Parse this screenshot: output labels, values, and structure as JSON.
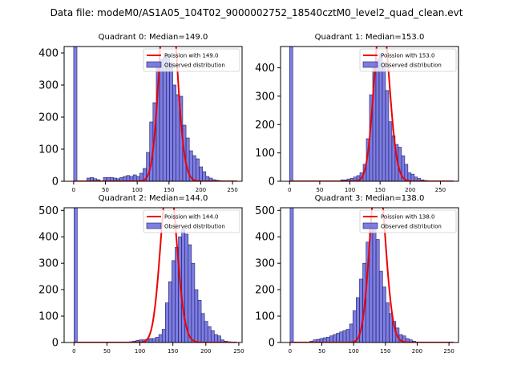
{
  "chart_data": {
    "suptitle": "Data file: modeM0/AS1A05_104T02_9000002752_18540cztM0_level2_quad_clean.evt",
    "colors": {
      "bar_fill": "#6666dd",
      "bar_edge": "#1f1f66",
      "line": "#ee0000"
    },
    "panels": [
      {
        "type": "bar",
        "title": "Quadrant 0: Median=149.0",
        "median": 149.0,
        "xlim": [
          -15,
          265
        ],
        "ylim": [
          0,
          420
        ],
        "xticks": [
          0,
          50,
          100,
          150,
          200,
          250
        ],
        "yticks": [
          0,
          100,
          200,
          300,
          400
        ],
        "bin_start": 0,
        "bin_width": 5.2,
        "counts": [
          5000,
          0,
          0,
          0,
          10,
          12,
          8,
          5,
          0,
          12,
          12,
          12,
          10,
          8,
          12,
          15,
          18,
          15,
          20,
          15,
          25,
          40,
          90,
          185,
          245,
          365,
          380,
          385,
          395,
          370,
          300,
          270,
          265,
          175,
          135,
          95,
          80,
          70,
          45,
          30,
          15,
          10,
          5,
          3,
          2,
          0,
          0,
          0,
          0,
          0
        ],
        "legend": {
          "line_label": "Poission with 149.0",
          "bars_label": "Observed distribution"
        }
      },
      {
        "type": "bar",
        "title": "Quadrant 1: Median=153.0",
        "median": 153.0,
        "xlim": [
          -15,
          280
        ],
        "ylim": [
          0,
          475
        ],
        "xticks": [
          0,
          50,
          100,
          150,
          200,
          250
        ],
        "yticks": [
          0,
          100,
          200,
          300,
          400
        ],
        "bin_start": 0,
        "bin_width": 5.3,
        "counts": [
          5000,
          0,
          0,
          0,
          0,
          0,
          0,
          0,
          0,
          0,
          0,
          0,
          0,
          0,
          0,
          0,
          5,
          5,
          8,
          10,
          15,
          20,
          30,
          60,
          150,
          305,
          400,
          430,
          450,
          405,
          320,
          210,
          160,
          130,
          120,
          90,
          60,
          30,
          25,
          15,
          10,
          5,
          3,
          2,
          0,
          0,
          0,
          0,
          0,
          0
        ],
        "legend": {
          "line_label": "Poission with 153.0",
          "bars_label": "Observed distribution"
        }
      },
      {
        "type": "bar",
        "title": "Quadrant 2: Median=144.0",
        "median": 144.0,
        "xlim": [
          -15,
          255
        ],
        "ylim": [
          0,
          510
        ],
        "xticks": [
          0,
          50,
          100,
          150,
          200,
          250
        ],
        "yticks": [
          0,
          100,
          200,
          300,
          400,
          500
        ],
        "bin_start": 0,
        "bin_width": 4.95,
        "counts": [
          5000,
          0,
          0,
          0,
          0,
          0,
          0,
          0,
          0,
          0,
          0,
          0,
          0,
          0,
          0,
          0,
          2,
          3,
          5,
          8,
          10,
          10,
          12,
          15,
          15,
          20,
          30,
          50,
          150,
          230,
          310,
          360,
          400,
          430,
          410,
          370,
          300,
          200,
          160,
          110,
          80,
          60,
          45,
          30,
          25,
          10,
          5,
          3,
          0,
          0
        ],
        "legend": {
          "line_label": "Poission with 144.0",
          "bars_label": "Observed distribution"
        }
      },
      {
        "type": "bar",
        "title": "Quadrant 3: Median=138.0",
        "median": 138.0,
        "xlim": [
          -15,
          265
        ],
        "ylim": [
          0,
          510
        ],
        "xticks": [
          0,
          50,
          100,
          150,
          200,
          250
        ],
        "yticks": [
          0,
          100,
          200,
          300,
          400,
          500
        ],
        "bin_start": 0,
        "bin_width": 5.2,
        "counts": [
          5000,
          0,
          0,
          0,
          0,
          0,
          5,
          10,
          12,
          15,
          18,
          20,
          25,
          30,
          35,
          40,
          45,
          50,
          70,
          120,
          170,
          240,
          300,
          380,
          440,
          430,
          390,
          270,
          210,
          150,
          110,
          80,
          55,
          30,
          25,
          15,
          10,
          5,
          2,
          0,
          0,
          0,
          0,
          0,
          0,
          0,
          0,
          0,
          0,
          0
        ],
        "legend": {
          "line_label": "Poission with 138.0",
          "bars_label": "Observed distribution"
        }
      }
    ]
  }
}
